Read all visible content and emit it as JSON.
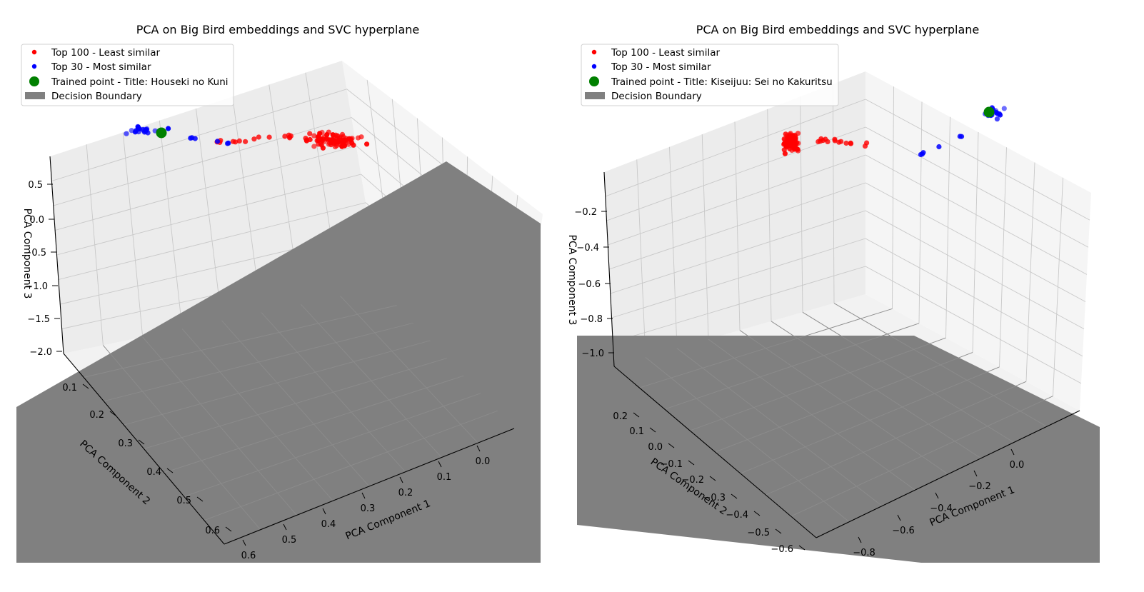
{
  "chart_data": [
    {
      "type": "scatter",
      "title": "PCA on Big Bird embeddings and SVC hyperplane",
      "xlabel": "PCA Component 1",
      "ylabel": "PCA Component 2",
      "zlabel": "PCA Component 3",
      "xlim": [
        -0.05,
        0.65
      ],
      "ylim": [
        0.05,
        0.65
      ],
      "zlim": [
        -2.0,
        0.8
      ],
      "xticks": [
        "0.0",
        "0.1",
        "0.2",
        "0.3",
        "0.4",
        "0.5",
        "0.6"
      ],
      "yticks": [
        "0.1",
        "0.2",
        "0.3",
        "0.4",
        "0.5",
        "0.6"
      ],
      "zticks": [
        "0.5",
        "0.0",
        "−0.5",
        "−1.0",
        "−1.5",
        "−2.0"
      ],
      "legend_position": "top-left",
      "legend": [
        "Top 100 - Least similar",
        "Top 30 - Most similar",
        "Trained point - Title: Houseki no Kuni",
        "Decision Boundary"
      ],
      "series": [
        {
          "name": "Top 100 - Least similar",
          "color": "#ff0000",
          "cluster": {
            "center": [
              0.3,
              0.15,
              0.55
            ],
            "spread": [
              0.035,
              0.03,
              0.05
            ],
            "count": 100
          }
        },
        {
          "name": "Top 30 - Most similar",
          "color": "#0000ff",
          "cluster": {
            "center": [
              0.58,
              0.55,
              0.62
            ],
            "spread": [
              0.03,
              0.035,
              0.05
            ],
            "count": 30
          }
        },
        {
          "name": "Trained point - Title: Houseki no Kuni",
          "color": "#008000",
          "points": [
            [
              0.58,
              0.58,
              0.62
            ]
          ]
        }
      ],
      "decision_boundary": {
        "color": "#808080",
        "description": "SVC hyperplane"
      }
    },
    {
      "type": "scatter",
      "title": "PCA on Big Bird embeddings and SVC hyperplane",
      "xlabel": "PCA Component 1",
      "ylabel": "PCA Component 2",
      "zlabel": "PCA Component 3",
      "xlim": [
        -0.85,
        0.15
      ],
      "ylim": [
        -0.65,
        0.3
      ],
      "zlim": [
        -1.1,
        -0.05
      ],
      "xticks": [
        "−0.8",
        "−0.6",
        "−0.4",
        "−0.2",
        "0.0"
      ],
      "yticks": [
        "0.2",
        "0.1",
        "0.0",
        "−0.1",
        "−0.2",
        "−0.3",
        "−0.4",
        "−0.5",
        "−0.6"
      ],
      "zticks": [
        "−0.2",
        "−0.4",
        "−0.6",
        "−0.8",
        "−1.0"
      ],
      "legend_position": "top-left",
      "legend": [
        "Top 100 - Least similar",
        "Top 30 - Most similar",
        "Trained point - Title: Kiseijuu: Sei no Kakuritsu",
        "Decision Boundary"
      ],
      "series": [
        {
          "name": "Top 100 - Least similar",
          "color": "#ff0000",
          "cluster": {
            "center": [
              0.0,
              0.22,
              -0.15
            ],
            "spread": [
              0.03,
              0.025,
              0.05
            ],
            "count": 100
          }
        },
        {
          "name": "Top 30 - Most similar",
          "color": "#0000ff",
          "cluster": {
            "center": [
              -0.7,
              -0.6,
              -0.15
            ],
            "spread": [
              0.04,
              0.03,
              0.05
            ],
            "count": 30
          }
        },
        {
          "name": "Trained point - Title: Kiseijuu: Sei no Kakuritsu",
          "color": "#008000",
          "points": [
            [
              -0.72,
              -0.62,
              -0.1
            ]
          ]
        }
      ],
      "decision_boundary": {
        "color": "#808080",
        "description": "SVC hyperplane"
      }
    }
  ]
}
